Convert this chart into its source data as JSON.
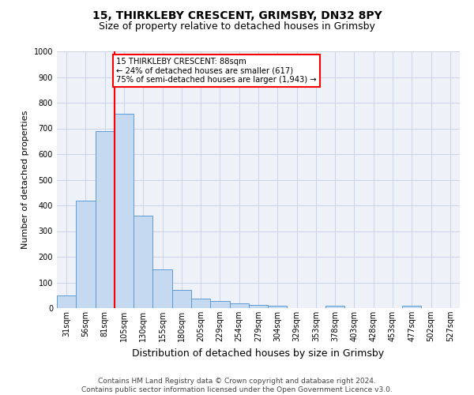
{
  "title": "15, THIRKLEBY CRESCENT, GRIMSBY, DN32 8PY",
  "subtitle": "Size of property relative to detached houses in Grimsby",
  "xlabel": "Distribution of detached houses by size in Grimsby",
  "ylabel": "Number of detached properties",
  "footer_line1": "Contains HM Land Registry data © Crown copyright and database right 2024.",
  "footer_line2": "Contains public sector information licensed under the Open Government Licence v3.0.",
  "categories": [
    "31sqm",
    "56sqm",
    "81sqm",
    "105sqm",
    "130sqm",
    "155sqm",
    "180sqm",
    "205sqm",
    "229sqm",
    "254sqm",
    "279sqm",
    "304sqm",
    "329sqm",
    "353sqm",
    "378sqm",
    "403sqm",
    "428sqm",
    "453sqm",
    "477sqm",
    "502sqm",
    "527sqm"
  ],
  "values": [
    48,
    420,
    688,
    757,
    360,
    150,
    70,
    37,
    27,
    17,
    12,
    8,
    0,
    0,
    8,
    0,
    0,
    0,
    8,
    0,
    0
  ],
  "bar_color": "#c5d9f0",
  "bar_edge_color": "#5b9bd5",
  "red_line_x": 2.5,
  "annotation_label": "15 THIRKLEBY CRESCENT: 88sqm",
  "annotation_line2": "← 24% of detached houses are smaller (617)",
  "annotation_line3": "75% of semi-detached houses are larger (1,943) →",
  "annotation_box_color": "white",
  "annotation_box_edge_color": "red",
  "ylim": [
    0,
    1000
  ],
  "yticks": [
    0,
    100,
    200,
    300,
    400,
    500,
    600,
    700,
    800,
    900,
    1000
  ],
  "grid_color": "#c8d4e8",
  "ax_bg_color": "#eef2f8",
  "background_color": "white",
  "title_fontsize": 10,
  "subtitle_fontsize": 9,
  "ylabel_fontsize": 8,
  "xlabel_fontsize": 9,
  "tick_fontsize": 7,
  "footer_fontsize": 6.5
}
